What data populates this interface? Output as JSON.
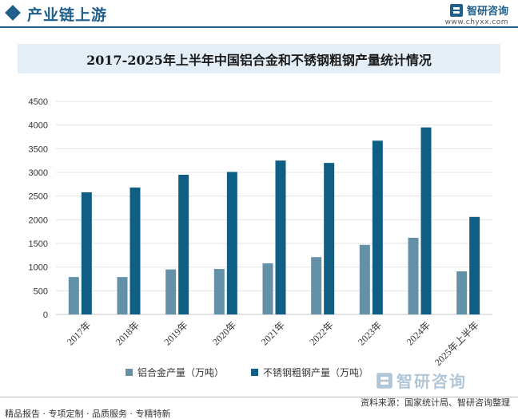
{
  "header": {
    "title": "产业链上游"
  },
  "brand": {
    "name": "智研咨询",
    "url": "www.chyxx.com",
    "color": "#1f5f8b"
  },
  "footer": {
    "source": "资料来源：国家统计局、智研咨询整理",
    "tagline": "精品报告 · 专项定制 · 品质服务 · 专精特新"
  },
  "watermark": {
    "name": "智研咨询"
  },
  "chart_data": {
    "type": "bar",
    "title": "2017-2025年上半年中国铝合金和不锈钢粗钢产量统计情况",
    "xlabel": "",
    "ylabel": "",
    "categories": [
      "2017年",
      "2018年",
      "2019年",
      "2020年",
      "2021年",
      "2022年",
      "2023年",
      "2024年",
      "2025年上半年"
    ],
    "ylim": [
      0,
      4500
    ],
    "yticks": [
      0,
      500,
      1000,
      1500,
      2000,
      2500,
      3000,
      3500,
      4000,
      4500
    ],
    "grid": true,
    "legend_position": "bottom",
    "series": [
      {
        "name": "铝合金产量（万吨）",
        "color": "#6490a8",
        "values": [
          790,
          790,
          950,
          960,
          1080,
          1210,
          1470,
          1620,
          910
        ]
      },
      {
        "name": "不锈钢粗钢产量（万吨）",
        "color": "#0f5f84",
        "values": [
          2580,
          2680,
          2950,
          3010,
          3250,
          3200,
          3670,
          3950,
          2060
        ]
      }
    ]
  }
}
